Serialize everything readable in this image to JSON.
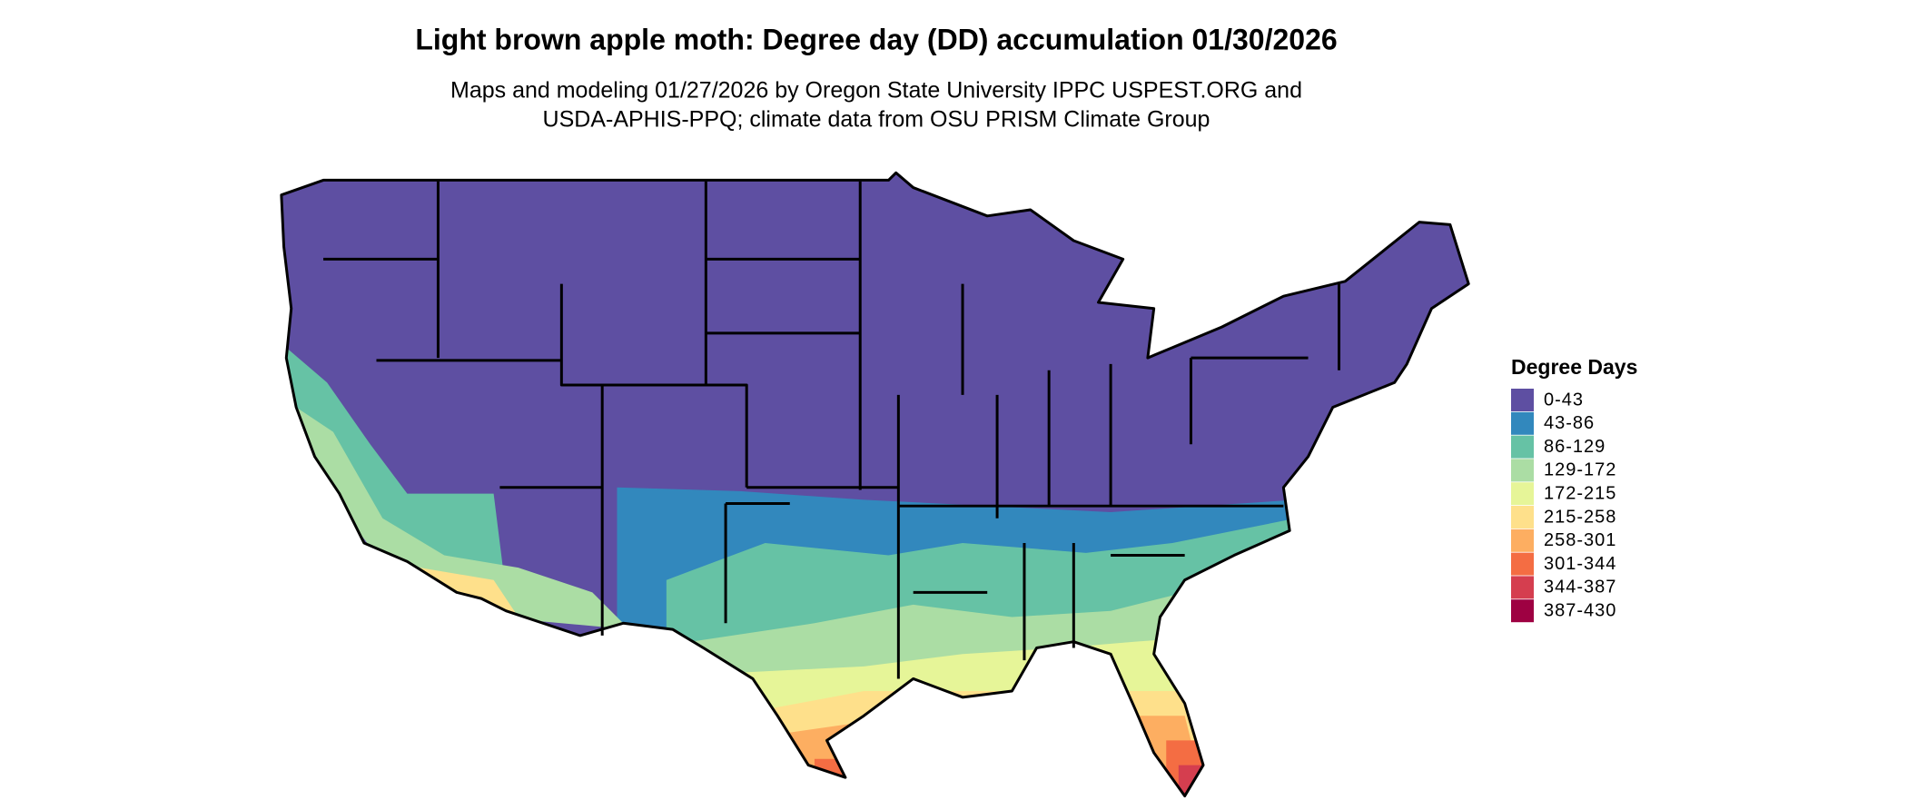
{
  "title": "Light brown apple moth: Degree day (DD) accumulation 01/30/2026",
  "subtitle": [
    "Maps and modeling 01/27/2026 by Oregon State University IPPC USPEST.ORG and",
    "USDA-APHIS-PPQ; climate data from OSU PRISM Climate Group"
  ],
  "legend": {
    "title": "Degree Days",
    "items": [
      {
        "label": "0-43",
        "color": "#5e4fa2"
      },
      {
        "label": "43-86",
        "color": "#3288bd"
      },
      {
        "label": "86-129",
        "color": "#66c2a5"
      },
      {
        "label": "129-172",
        "color": "#abdda4"
      },
      {
        "label": "172-215",
        "color": "#e6f598"
      },
      {
        "label": "215-258",
        "color": "#fee08b"
      },
      {
        "label": "258-301",
        "color": "#fdae61"
      },
      {
        "label": "301-344",
        "color": "#f46d43"
      },
      {
        "label": "344-387",
        "color": "#d53e4f"
      },
      {
        "label": "387-430",
        "color": "#9e0142"
      }
    ]
  }
}
